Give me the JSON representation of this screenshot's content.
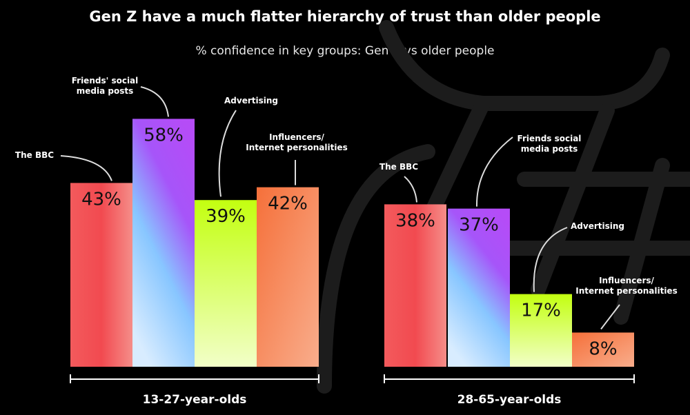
{
  "chart_data": {
    "type": "bar",
    "title": "Gen Z have a much flatter hierarchy of trust than older people",
    "subtitle": "% confidence in key groups: Gen Z vs older people",
    "unit": "%",
    "groups": [
      {
        "name": "13-27-year-olds",
        "categories": [
          "The BBC",
          "Friends' social media posts",
          "Advertising",
          "Influencers/ Internet personalities"
        ],
        "values": [
          43,
          58,
          39,
          42
        ]
      },
      {
        "name": "28-65-year-olds",
        "categories": [
          "The BBC",
          "Friends social media posts",
          "Advertising",
          "Influencers/ Internet personalities"
        ],
        "values": [
          38,
          37,
          17,
          8
        ]
      }
    ],
    "colors": {
      "bbc": [
        "#f24a4f",
        "#f58a86"
      ],
      "friends": [
        "#b04cf7",
        "#8ec8ff",
        "#d6ecff"
      ],
      "advertising": [
        "#c6ff1a",
        "#f0ffc0"
      ],
      "influencers": [
        "#f5763f",
        "#f9a584"
      ]
    },
    "background": "#000000",
    "grid": false,
    "legend": "none"
  }
}
